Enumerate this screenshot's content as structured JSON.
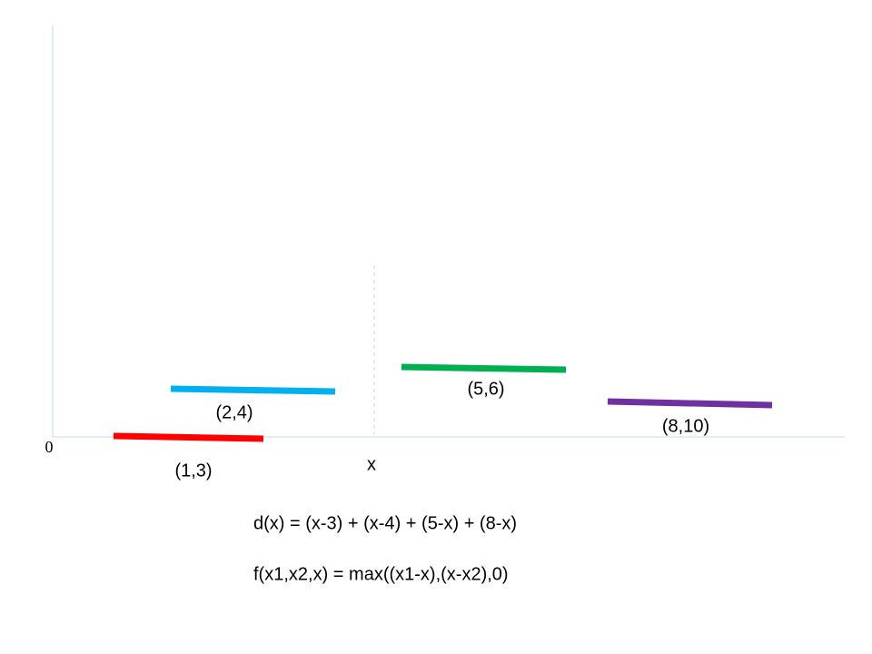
{
  "origin_label": "0",
  "x_label": "x",
  "segments": [
    {
      "label": "(1,3)"
    },
    {
      "label": "(2,4)"
    },
    {
      "label": "(5,6)"
    },
    {
      "label": "(8,10)"
    }
  ],
  "formulas": [
    "d(x) = (x-3) + (x-4) + (5-x) + (8-x)",
    "f(x1,x2,x) = max((x1-x),(x-x2),0)"
  ]
}
